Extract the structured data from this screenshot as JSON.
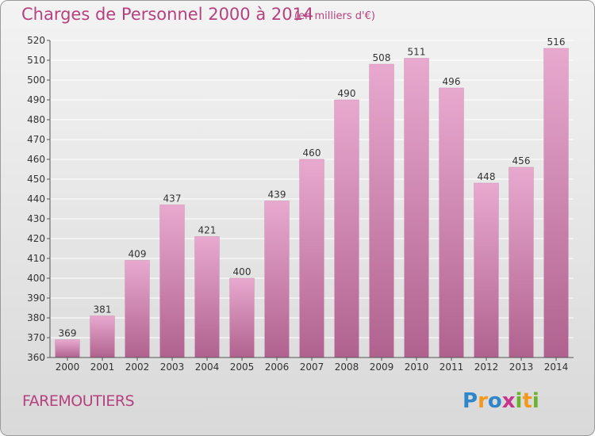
{
  "header": {
    "title": "Charges de Personnel 2000 à 2014",
    "subtitle": "(en milliers d'€)"
  },
  "footer": {
    "place_name": "FAREMOUTIERS",
    "logo_text": "Proxiti",
    "logo_letters": [
      {
        "char": "P",
        "color": "#2f86c8"
      },
      {
        "char": "r",
        "color": "#f39a1e"
      },
      {
        "char": "o",
        "color": "#2f86c8"
      },
      {
        "char": "x",
        "color": "#c7348c"
      },
      {
        "char": "i",
        "color": "#6ab42d"
      },
      {
        "char": "t",
        "color": "#f39a1e"
      },
      {
        "char": "i",
        "color": "#6ab42d"
      }
    ]
  },
  "colors": {
    "accent": "#b5427e",
    "bar_top": "#e8a9cf",
    "bar_bottom": "#b0628f",
    "grid": "#ffffff",
    "text": "#333333"
  },
  "chart_data": {
    "type": "bar",
    "categories": [
      "2000",
      "2001",
      "2002",
      "2003",
      "2004",
      "2005",
      "2006",
      "2007",
      "2008",
      "2009",
      "2010",
      "2011",
      "2012",
      "2013",
      "2014"
    ],
    "values": [
      369,
      381,
      409,
      437,
      421,
      400,
      439,
      460,
      490,
      508,
      511,
      496,
      448,
      456,
      516
    ],
    "data_labels": [
      "369",
      "381",
      "409",
      "437",
      "421",
      "400",
      "439",
      "460",
      "490",
      "508",
      "511",
      "496",
      "448",
      "456",
      "516"
    ],
    "ylim": [
      360,
      520
    ],
    "yticks": [
      360,
      370,
      380,
      390,
      400,
      410,
      420,
      430,
      440,
      450,
      460,
      470,
      480,
      490,
      500,
      510,
      520
    ],
    "grid": true,
    "legend": "none"
  }
}
